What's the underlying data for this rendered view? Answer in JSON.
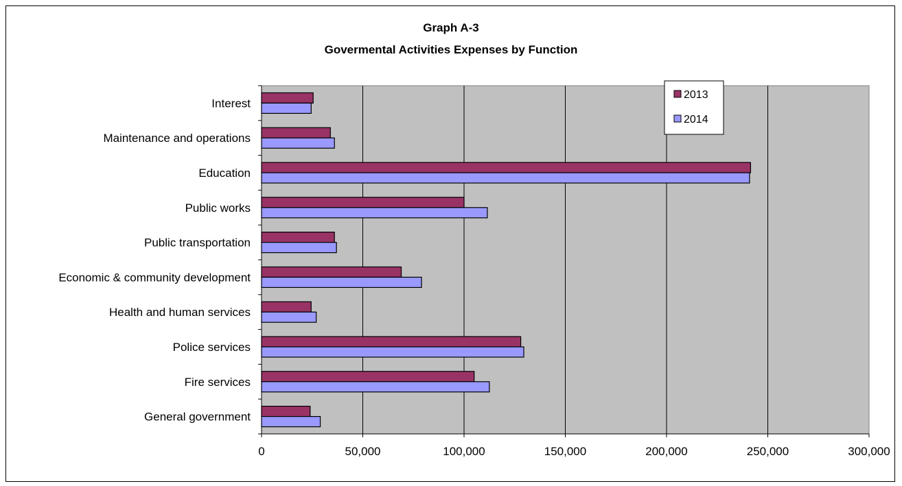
{
  "chart_data": {
    "type": "bar",
    "orientation": "horizontal",
    "title": "Graph A-3",
    "subtitle": "Govermental Activities Expenses by Function",
    "categories": [
      "Interest",
      "Maintenance and operations",
      "Education",
      "Public works",
      "Public transportation",
      "Economic & community development",
      "Health and human services",
      "Police services",
      "Fire services",
      "General government"
    ],
    "series": [
      {
        "name": "2013",
        "color": "#993366",
        "values": [
          25500,
          34000,
          241500,
          100000,
          36000,
          69000,
          24500,
          128000,
          105000,
          24000
        ]
      },
      {
        "name": "2014",
        "color": "#9999ff",
        "values": [
          24500,
          36000,
          241000,
          111500,
          37000,
          79000,
          27000,
          129500,
          112500,
          29000
        ]
      }
    ],
    "xlim": [
      0,
      300000
    ],
    "xticks": [
      "0",
      "50,000",
      "100,000",
      "150,000",
      "200,000",
      "250,000",
      "300,000"
    ],
    "xtick_values": [
      0,
      50000,
      100000,
      150000,
      200000,
      250000,
      300000
    ],
    "grid": "vertical",
    "plot_background": "#c0c0c0",
    "legend_position": "top-right",
    "xlabel": "",
    "ylabel": ""
  }
}
